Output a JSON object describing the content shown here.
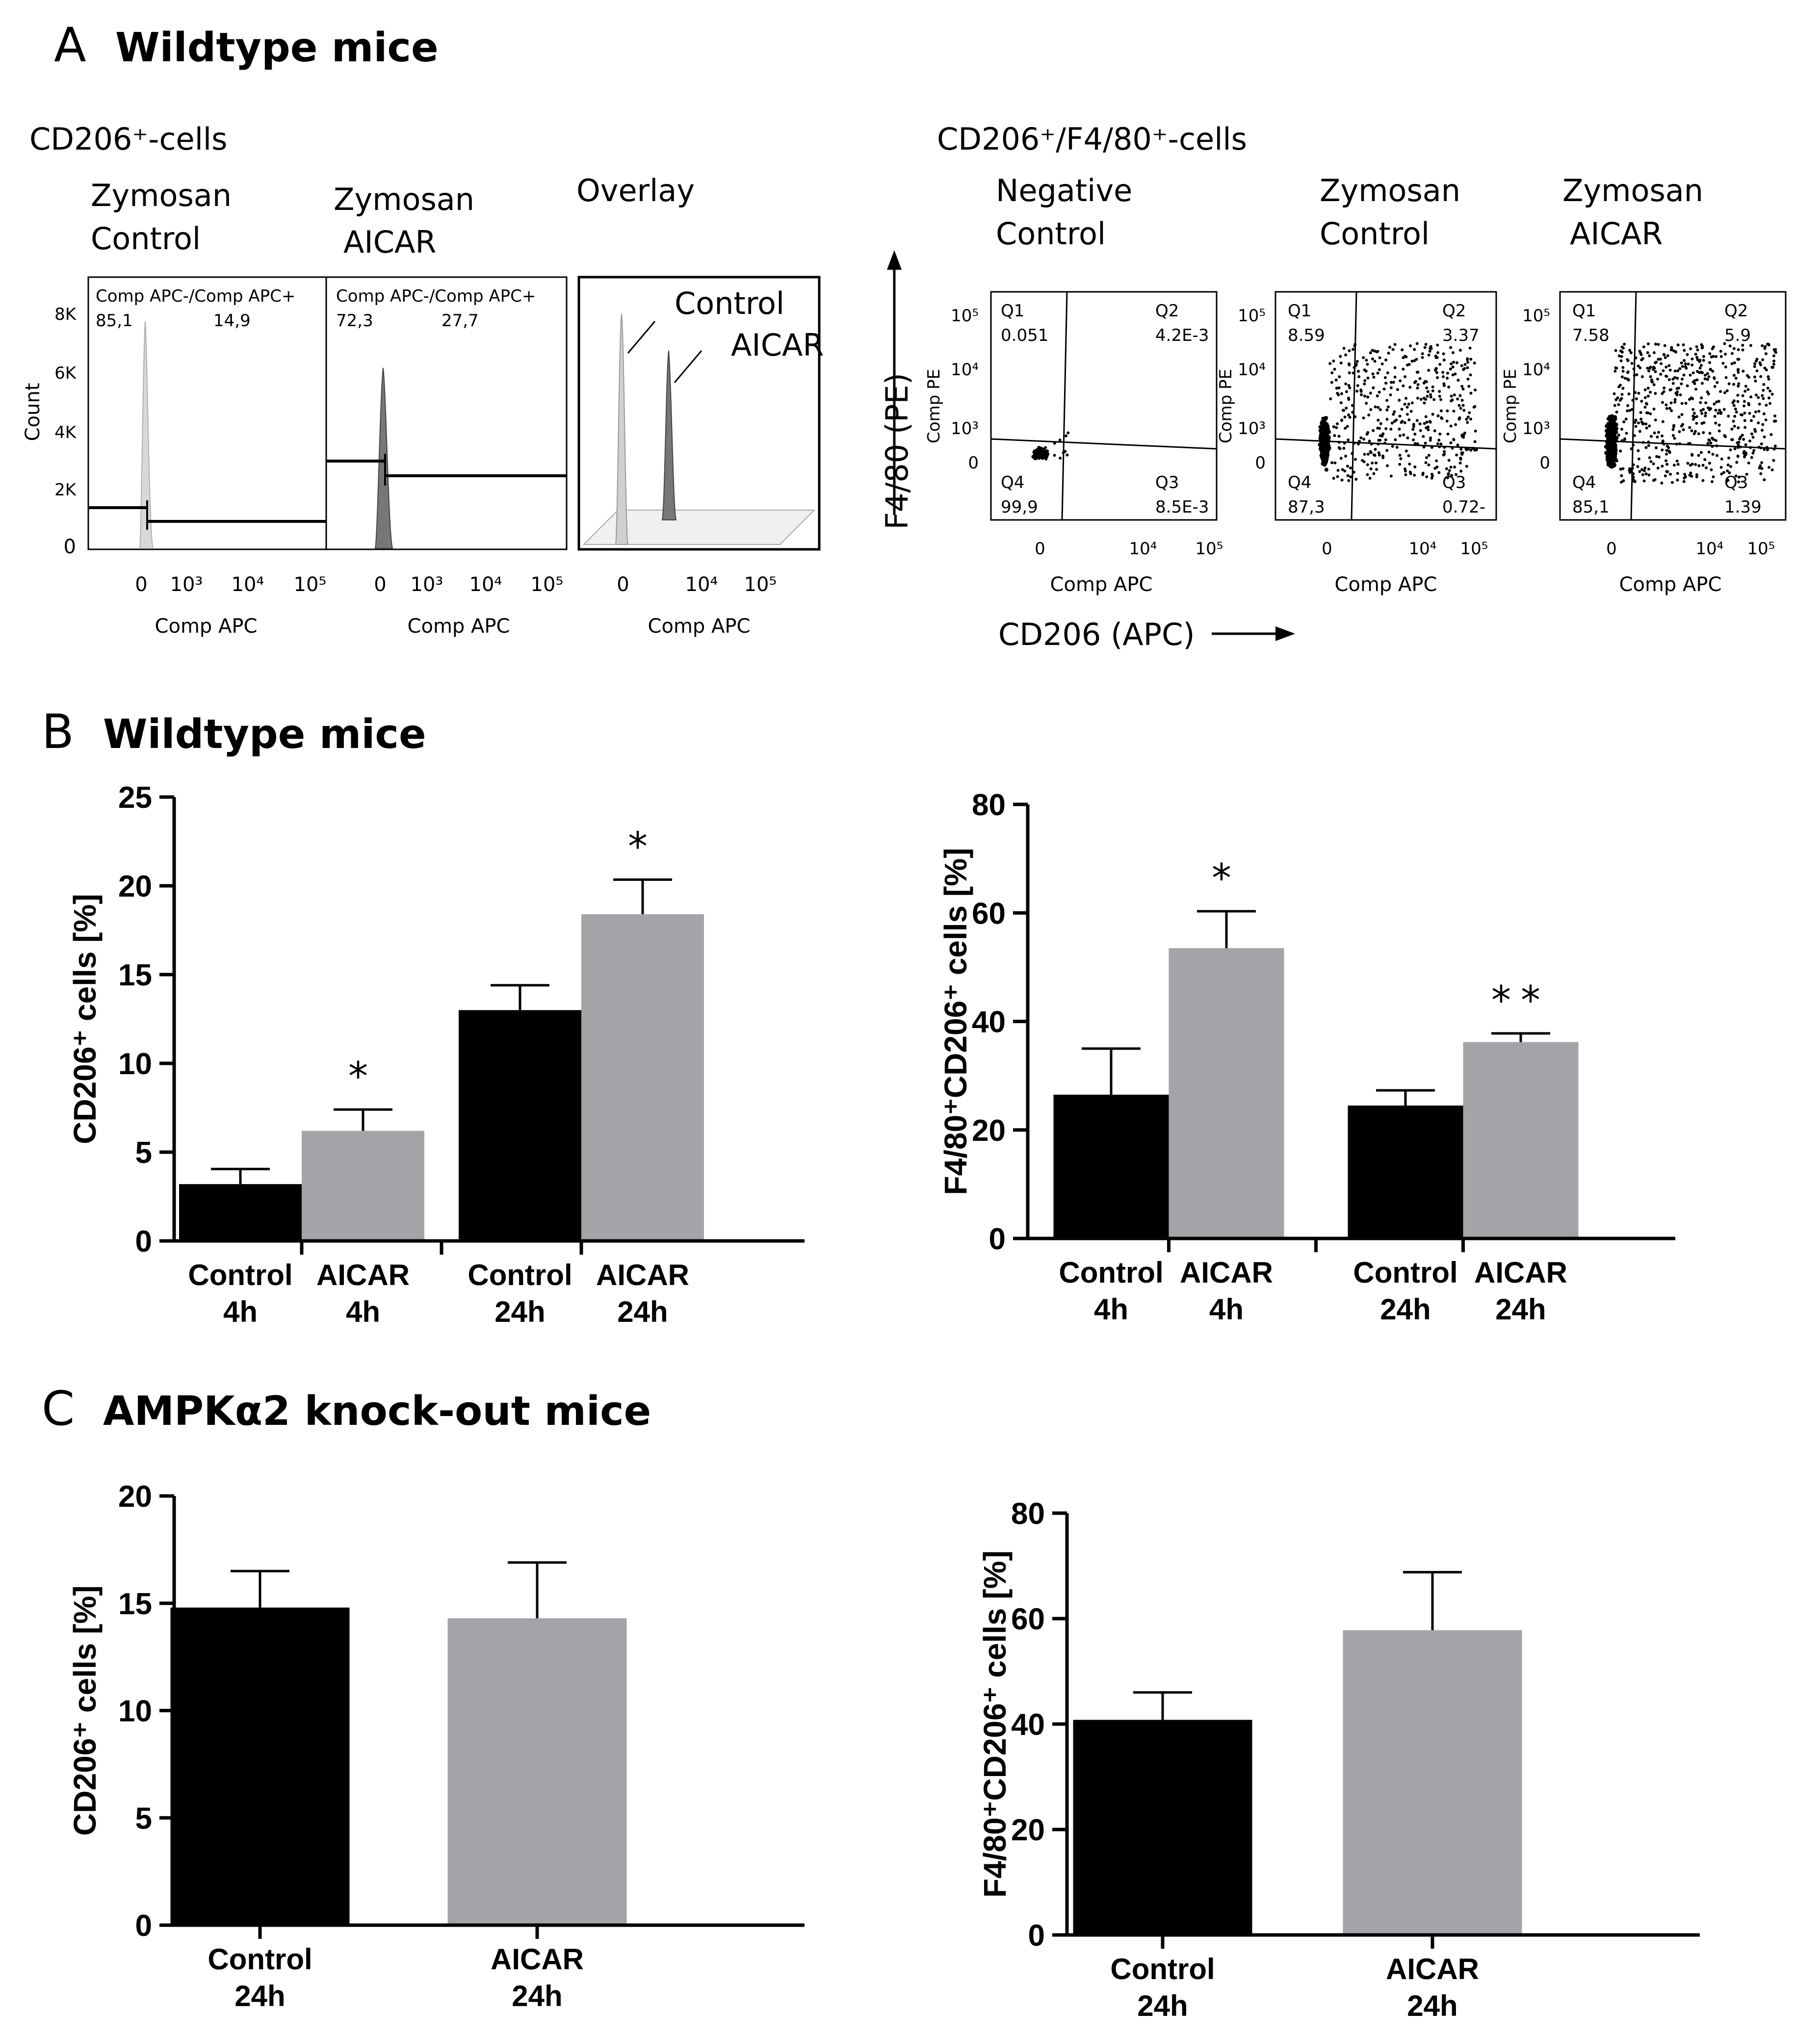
{
  "panel_a": {
    "letter": "A",
    "title": "Wildtype mice",
    "cd206_header": "CD206⁺-cells",
    "hist1": {
      "title_line1": "Zymosan",
      "title_line2": "Control",
      "gate_label": "Comp APC-/Comp APC+",
      "left_pct": "85,1",
      "right_pct": "14,9"
    },
    "hist2": {
      "title_line1": "Zymosan",
      "title_line2": "AICAR",
      "gate_label": "Comp APC-/Comp APC+",
      "left_pct": "72,3",
      "right_pct": "27,7"
    },
    "hist_ylabel": "Count",
    "hist_yticks": [
      "8K",
      "6K",
      "4K",
      "2K",
      "0"
    ],
    "hist_xticks": [
      "0",
      "10³",
      "10⁴",
      "10⁵"
    ],
    "hist_xlabel": "Comp APC",
    "overlay": {
      "title": "Overlay",
      "control": "Control",
      "aicar": "AICAR",
      "xticks": [
        "0",
        "10⁴",
        "10⁵"
      ]
    },
    "f480_header": "CD206⁺/F4/80⁺-cells",
    "scatter_ylabel": "F4/80 (PE)",
    "scatter_xlabel": "CD206 (APC)",
    "scatter_axis_y": "Comp PE",
    "scatter_axis_x": "Comp APC",
    "scatter_yticks": [
      "10⁵",
      "10⁴",
      "10³",
      "0"
    ],
    "scatter_xticks": [
      "0",
      "10⁴",
      "10⁵"
    ],
    "scatters": [
      {
        "title_line1": "Negative",
        "title_line2": "Control",
        "q1": "Q1",
        "q1v": "0.051",
        "q2": "Q2",
        "q2v": "4.2E-3",
        "q3": "Q3",
        "q3v": "8.5E-3",
        "q4": "Q4",
        "q4v": "99,9"
      },
      {
        "title_line1": "Zymosan",
        "title_line2": "Control",
        "q1": "Q1",
        "q1v": "8.59",
        "q2": "Q2",
        "q2v": "3.37",
        "q3": "Q3",
        "q3v": "0.72-",
        "q4": "Q4",
        "q4v": "87,3"
      },
      {
        "title_line1": "Zymosan",
        "title_line2": "AICAR",
        "q1": "Q1",
        "q1v": "7.58",
        "q2": "Q2",
        "q2v": "5.9",
        "q3": "Q3",
        "q3v": "1.39",
        "q4": "Q4",
        "q4v": "85,1"
      }
    ]
  },
  "panel_b": {
    "letter": "B",
    "title": "Wildtype mice"
  },
  "panel_c": {
    "letter": "C",
    "title": "AMPKα2 knock-out mice"
  },
  "colors": {
    "control": "#000000",
    "aicar": "#a3a4a8"
  },
  "chart_data": [
    {
      "id": "B-left",
      "type": "bar",
      "ylabel": "CD206⁺ cells [%]",
      "ylim": [
        0,
        25
      ],
      "yticks": [
        0,
        5,
        10,
        15,
        20,
        25
      ],
      "categories": [
        [
          "Control",
          "4h"
        ],
        [
          "AICAR",
          "4h"
        ],
        [
          "Control",
          "24h"
        ],
        [
          "AICAR",
          "24h"
        ]
      ],
      "values": [
        3.2,
        6.2,
        13.0,
        18.4
      ],
      "errors": [
        0.85,
        1.2,
        1.4,
        1.95
      ],
      "significance": [
        "",
        "*",
        "",
        "*"
      ],
      "series_color_keys": [
        "control",
        "aicar",
        "control",
        "aicar"
      ]
    },
    {
      "id": "B-right",
      "type": "bar",
      "ylabel": "F4/80⁺CD206⁺ cells [%]",
      "ylim": [
        0,
        80
      ],
      "yticks": [
        0,
        20,
        40,
        60,
        80
      ],
      "categories": [
        [
          "Control",
          "4h"
        ],
        [
          "AICAR",
          "4h"
        ],
        [
          "Control",
          "24h"
        ],
        [
          "AICAR",
          "24h"
        ]
      ],
      "values": [
        26.5,
        53.5,
        24.5,
        36.2
      ],
      "errors": [
        8.5,
        6.8,
        2.8,
        1.6
      ],
      "significance": [
        "",
        "*",
        "",
        "**"
      ],
      "series_color_keys": [
        "control",
        "aicar",
        "control",
        "aicar"
      ]
    },
    {
      "id": "C-left",
      "type": "bar",
      "ylabel": "CD206⁺ cells [%]",
      "ylim": [
        0,
        20
      ],
      "yticks": [
        0,
        5,
        10,
        15,
        20
      ],
      "categories": [
        [
          "Control",
          "24h"
        ],
        [
          "AICAR",
          "24h"
        ]
      ],
      "values": [
        14.8,
        14.3
      ],
      "errors": [
        1.7,
        2.6
      ],
      "significance": [
        "",
        ""
      ],
      "series_color_keys": [
        "control",
        "aicar"
      ]
    },
    {
      "id": "C-right",
      "type": "bar",
      "ylabel": "F4/80⁺CD206⁺ cells [%]",
      "ylim": [
        0,
        80
      ],
      "yticks": [
        0,
        20,
        40,
        60,
        80
      ],
      "categories": [
        [
          "Control",
          "24h"
        ],
        [
          "AICAR",
          "24h"
        ]
      ],
      "values": [
        40.8,
        57.8
      ],
      "errors": [
        5.2,
        11.0
      ],
      "significance": [
        "",
        ""
      ],
      "series_color_keys": [
        "control",
        "aicar"
      ]
    }
  ]
}
